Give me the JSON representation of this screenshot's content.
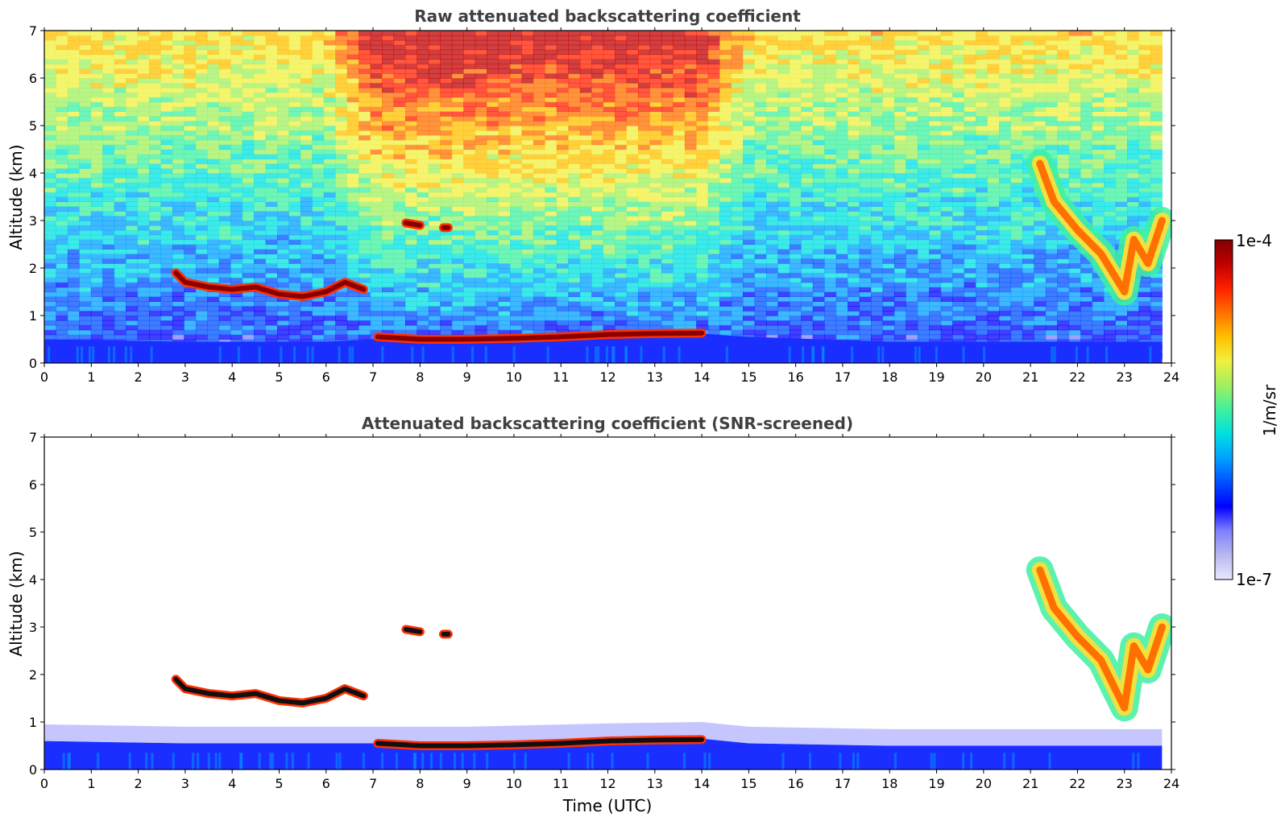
{
  "chart_data": [
    {
      "type": "heatmap",
      "title": "Raw attenuated backscattering coefficient",
      "xlabel": "",
      "ylabel": "Altitude (km)",
      "xlim": [
        0,
        24
      ],
      "ylim": [
        0,
        7
      ],
      "xticks": [
        "0",
        "1",
        "2",
        "3",
        "4",
        "5",
        "6",
        "7",
        "8",
        "9",
        "10",
        "11",
        "12",
        "13",
        "14",
        "15",
        "16",
        "17",
        "18",
        "19",
        "20",
        "21",
        "22",
        "23",
        "24"
      ],
      "yticks": [
        "0",
        "1",
        "2",
        "3",
        "4",
        "5",
        "6",
        "7"
      ],
      "noise": "high",
      "features": [
        {
          "kind": "boundary_layer",
          "points": [
            [
              0,
              0.5
            ],
            [
              3,
              0.45
            ],
            [
              6,
              0.45
            ],
            [
              7,
              0.5
            ],
            [
              9,
              0.55
            ],
            [
              12,
              0.6
            ],
            [
              14,
              0.62
            ],
            [
              15,
              0.55
            ],
            [
              18,
              0.45
            ],
            [
              21,
              0.45
            ],
            [
              23.8,
              0.45
            ]
          ]
        },
        {
          "kind": "cloud_layer",
          "points": [
            [
              2.8,
              1.9
            ],
            [
              3.0,
              1.7
            ],
            [
              3.5,
              1.6
            ],
            [
              4.0,
              1.55
            ],
            [
              4.5,
              1.6
            ],
            [
              5.0,
              1.45
            ],
            [
              5.5,
              1.4
            ],
            [
              6.0,
              1.5
            ],
            [
              6.4,
              1.7
            ],
            [
              6.8,
              1.55
            ]
          ]
        },
        {
          "kind": "cloud_layer",
          "points": [
            [
              7.1,
              0.55
            ],
            [
              8.0,
              0.5
            ],
            [
              9.0,
              0.5
            ],
            [
              10.0,
              0.52
            ],
            [
              11.0,
              0.55
            ],
            [
              12.0,
              0.6
            ],
            [
              13.0,
              0.62
            ],
            [
              14.0,
              0.63
            ]
          ]
        },
        {
          "kind": "cloud_patch",
          "points": [
            [
              7.7,
              2.95
            ],
            [
              8.0,
              2.9
            ]
          ]
        },
        {
          "kind": "cloud_patch",
          "points": [
            [
              8.5,
              2.85
            ],
            [
              8.6,
              2.85
            ]
          ]
        },
        {
          "kind": "cirrus",
          "points": [
            [
              21.2,
              4.2
            ],
            [
              21.5,
              3.4
            ],
            [
              22.0,
              2.8
            ],
            [
              22.5,
              2.3
            ],
            [
              23.0,
              1.5
            ],
            [
              23.2,
              2.6
            ],
            [
              23.5,
              2.1
            ],
            [
              23.8,
              3.0
            ]
          ]
        }
      ]
    },
    {
      "type": "heatmap",
      "title": "Attenuated backscattering coefficient (SNR-screened)",
      "xlabel": "Time (UTC)",
      "ylabel": "Altitude (km)",
      "xlim": [
        0,
        24
      ],
      "ylim": [
        0,
        7
      ],
      "xticks": [
        "0",
        "1",
        "2",
        "3",
        "4",
        "5",
        "6",
        "7",
        "8",
        "9",
        "10",
        "11",
        "12",
        "13",
        "14",
        "15",
        "16",
        "17",
        "18",
        "19",
        "20",
        "21",
        "22",
        "23",
        "24"
      ],
      "yticks": [
        "0",
        "1",
        "2",
        "3",
        "4",
        "5",
        "6",
        "7"
      ],
      "noise": "screened",
      "features": [
        {
          "kind": "boundary_layer",
          "points": [
            [
              0,
              0.6
            ],
            [
              3,
              0.55
            ],
            [
              6,
              0.55
            ],
            [
              7,
              0.55
            ],
            [
              9,
              0.55
            ],
            [
              12,
              0.62
            ],
            [
              14,
              0.65
            ],
            [
              15,
              0.55
            ],
            [
              18,
              0.5
            ],
            [
              21,
              0.5
            ],
            [
              23.8,
              0.5
            ]
          ]
        },
        {
          "kind": "cloud_layer",
          "points": [
            [
              2.8,
              1.9
            ],
            [
              3.0,
              1.7
            ],
            [
              3.5,
              1.6
            ],
            [
              4.0,
              1.55
            ],
            [
              4.5,
              1.6
            ],
            [
              5.0,
              1.45
            ],
            [
              5.5,
              1.4
            ],
            [
              6.0,
              1.5
            ],
            [
              6.4,
              1.7
            ],
            [
              6.8,
              1.55
            ]
          ]
        },
        {
          "kind": "cloud_layer",
          "points": [
            [
              7.1,
              0.55
            ],
            [
              8.0,
              0.5
            ],
            [
              9.0,
              0.5
            ],
            [
              10.0,
              0.52
            ],
            [
              11.0,
              0.55
            ],
            [
              12.0,
              0.6
            ],
            [
              13.0,
              0.62
            ],
            [
              14.0,
              0.63
            ]
          ]
        },
        {
          "kind": "cloud_patch",
          "points": [
            [
              7.7,
              2.95
            ],
            [
              8.0,
              2.9
            ]
          ]
        },
        {
          "kind": "cloud_patch",
          "points": [
            [
              8.5,
              2.85
            ],
            [
              8.6,
              2.85
            ]
          ]
        },
        {
          "kind": "cirrus",
          "points": [
            [
              21.2,
              4.2
            ],
            [
              21.5,
              3.4
            ],
            [
              22.0,
              2.8
            ],
            [
              22.5,
              2.3
            ],
            [
              23.0,
              1.3
            ],
            [
              23.2,
              2.6
            ],
            [
              23.5,
              2.1
            ],
            [
              23.8,
              3.0
            ]
          ]
        }
      ]
    }
  ],
  "colorbar": {
    "max_label": "1e-4",
    "min_label": "1e-7",
    "unit_label": "1/m/sr",
    "colors": [
      "#e8e8ff",
      "#b8b8f0",
      "#8080ff",
      "#0000ff",
      "#0050ff",
      "#00a0ff",
      "#00e0e0",
      "#40f0a0",
      "#a0f060",
      "#f0f040",
      "#ffc000",
      "#ff7000",
      "#ff2000",
      "#c00000",
      "#800000"
    ]
  }
}
